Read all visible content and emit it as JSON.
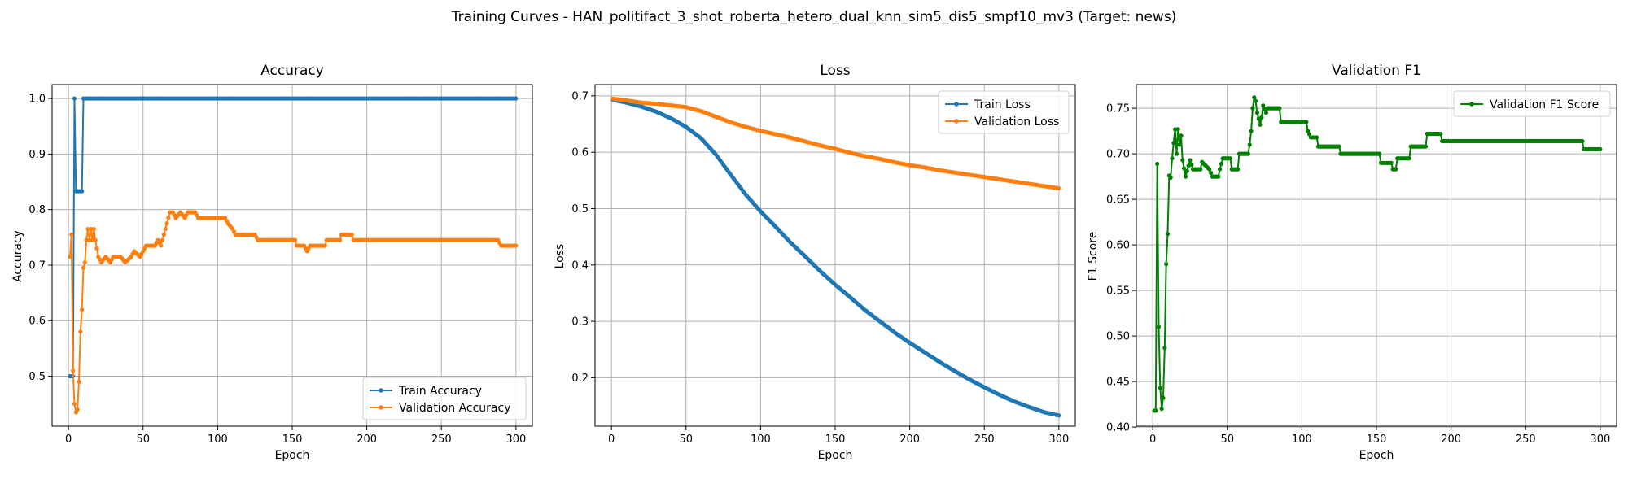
{
  "figure": {
    "suptitle": "Training Curves - HAN_politifact_3_shot_roberta_hetero_dual_knn_sim5_dis5_smpf10_mv3 (Target: news)"
  },
  "colors": {
    "train": "#1f77b4",
    "validation": "#ff7f0e",
    "f1": "#008000"
  },
  "chart_data": [
    {
      "type": "line",
      "title": "Accuracy",
      "xlabel": "Epoch",
      "ylabel": "Accuracy",
      "xlim": [
        -11,
        311
      ],
      "ylim": [
        0.41,
        1.025
      ],
      "xticks": [
        0,
        50,
        100,
        150,
        200,
        250,
        300
      ],
      "yticks": [
        0.5,
        0.6,
        0.7,
        0.8,
        0.9,
        1.0
      ],
      "ytick_labels": [
        "0.5",
        "0.6",
        "0.7",
        "0.8",
        "0.9",
        "1.0"
      ],
      "grid": true,
      "legend": "lower-right",
      "series": [
        {
          "name": "Train Accuracy",
          "color": "#1f77b4",
          "points": [
            [
              1,
              0.5
            ],
            [
              2,
              0.5
            ],
            [
              3,
              0.5
            ],
            [
              4,
              1.0
            ],
            [
              5,
              0.833
            ],
            [
              6,
              0.833
            ],
            [
              7,
              0.833
            ],
            [
              8,
              0.833
            ],
            [
              9,
              0.833
            ],
            [
              10,
              1.0
            ],
            [
              300,
              1.0
            ]
          ]
        },
        {
          "name": "Validation Accuracy",
          "color": "#ff7f0e",
          "points": [
            [
              1,
              0.715
            ],
            [
              2,
              0.755
            ],
            [
              3,
              0.51
            ],
            [
              4,
              0.45
            ],
            [
              5,
              0.435
            ],
            [
              6,
              0.44
            ],
            [
              7,
              0.49
            ],
            [
              8,
              0.58
            ],
            [
              9,
              0.62
            ],
            [
              10,
              0.695
            ],
            [
              11,
              0.705
            ],
            [
              12,
              0.745
            ],
            [
              13,
              0.765
            ],
            [
              14,
              0.745
            ],
            [
              15,
              0.765
            ],
            [
              16,
              0.745
            ],
            [
              17,
              0.765
            ],
            [
              18,
              0.745
            ],
            [
              20,
              0.715
            ],
            [
              22,
              0.705
            ],
            [
              25,
              0.715
            ],
            [
              28,
              0.705
            ],
            [
              30,
              0.715
            ],
            [
              35,
              0.715
            ],
            [
              38,
              0.705
            ],
            [
              42,
              0.715
            ],
            [
              44,
              0.725
            ],
            [
              48,
              0.715
            ],
            [
              50,
              0.725
            ],
            [
              52,
              0.735
            ],
            [
              58,
              0.735
            ],
            [
              60,
              0.745
            ],
            [
              62,
              0.735
            ],
            [
              63,
              0.745
            ],
            [
              65,
              0.765
            ],
            [
              67,
              0.785
            ],
            [
              68,
              0.795
            ],
            [
              70,
              0.795
            ],
            [
              72,
              0.785
            ],
            [
              75,
              0.795
            ],
            [
              78,
              0.785
            ],
            [
              80,
              0.795
            ],
            [
              85,
              0.795
            ],
            [
              87,
              0.785
            ],
            [
              105,
              0.785
            ],
            [
              107,
              0.775
            ],
            [
              110,
              0.765
            ],
            [
              112,
              0.755
            ],
            [
              125,
              0.755
            ],
            [
              127,
              0.745
            ],
            [
              152,
              0.745
            ],
            [
              153,
              0.735
            ],
            [
              158,
              0.735
            ],
            [
              160,
              0.725
            ],
            [
              162,
              0.735
            ],
            [
              172,
              0.735
            ],
            [
              173,
              0.745
            ],
            [
              182,
              0.745
            ],
            [
              183,
              0.755
            ],
            [
              190,
              0.755
            ],
            [
              191,
              0.745
            ],
            [
              288,
              0.745
            ],
            [
              290,
              0.735
            ],
            [
              300,
              0.735
            ]
          ]
        }
      ]
    },
    {
      "type": "line",
      "title": "Loss",
      "xlabel": "Epoch",
      "ylabel": "Loss",
      "xlim": [
        -11,
        311
      ],
      "ylim": [
        0.114,
        0.72
      ],
      "xticks": [
        0,
        50,
        100,
        150,
        200,
        250,
        300
      ],
      "yticks": [
        0.2,
        0.3,
        0.4,
        0.5,
        0.6,
        0.7
      ],
      "ytick_labels": [
        "0.2",
        "0.3",
        "0.4",
        "0.5",
        "0.6",
        "0.7"
      ],
      "grid": true,
      "legend": "upper-right",
      "series": [
        {
          "name": "Train Loss",
          "color": "#1f77b4",
          "points": [
            [
              1,
              0.693
            ],
            [
              10,
              0.688
            ],
            [
              20,
              0.681
            ],
            [
              30,
              0.672
            ],
            [
              40,
              0.66
            ],
            [
              50,
              0.645
            ],
            [
              60,
              0.625
            ],
            [
              70,
              0.596
            ],
            [
              80,
              0.56
            ],
            [
              90,
              0.525
            ],
            [
              100,
              0.495
            ],
            [
              110,
              0.468
            ],
            [
              120,
              0.44
            ],
            [
              130,
              0.415
            ],
            [
              140,
              0.389
            ],
            [
              150,
              0.365
            ],
            [
              160,
              0.343
            ],
            [
              170,
              0.32
            ],
            [
              180,
              0.3
            ],
            [
              190,
              0.28
            ],
            [
              200,
              0.262
            ],
            [
              210,
              0.245
            ],
            [
              220,
              0.228
            ],
            [
              230,
              0.212
            ],
            [
              240,
              0.197
            ],
            [
              250,
              0.183
            ],
            [
              260,
              0.17
            ],
            [
              270,
              0.158
            ],
            [
              280,
              0.148
            ],
            [
              290,
              0.139
            ],
            [
              300,
              0.133
            ]
          ]
        },
        {
          "name": "Validation Loss",
          "color": "#ff7f0e",
          "points": [
            [
              1,
              0.695
            ],
            [
              10,
              0.692
            ],
            [
              20,
              0.688
            ],
            [
              30,
              0.686
            ],
            [
              40,
              0.683
            ],
            [
              50,
              0.68
            ],
            [
              60,
              0.673
            ],
            [
              70,
              0.663
            ],
            [
              80,
              0.653
            ],
            [
              90,
              0.645
            ],
            [
              100,
              0.638
            ],
            [
              110,
              0.632
            ],
            [
              120,
              0.626
            ],
            [
              130,
              0.619
            ],
            [
              140,
              0.612
            ],
            [
              150,
              0.606
            ],
            [
              160,
              0.599
            ],
            [
              170,
              0.593
            ],
            [
              180,
              0.588
            ],
            [
              190,
              0.582
            ],
            [
              200,
              0.577
            ],
            [
              210,
              0.573
            ],
            [
              220,
              0.568
            ],
            [
              230,
              0.564
            ],
            [
              240,
              0.56
            ],
            [
              250,
              0.556
            ],
            [
              260,
              0.552
            ],
            [
              270,
              0.548
            ],
            [
              280,
              0.544
            ],
            [
              290,
              0.54
            ],
            [
              300,
              0.536
            ]
          ]
        }
      ]
    },
    {
      "type": "line",
      "title": "Validation F1",
      "xlabel": "Epoch",
      "ylabel": "F1 Score",
      "xlim": [
        -11,
        311
      ],
      "ylim": [
        0.401,
        0.776
      ],
      "xticks": [
        0,
        50,
        100,
        150,
        200,
        250,
        300
      ],
      "yticks": [
        0.4,
        0.45,
        0.5,
        0.55,
        0.6,
        0.65,
        0.7,
        0.75
      ],
      "ytick_labels": [
        "0.40",
        "0.45",
        "0.50",
        "0.55",
        "0.60",
        "0.65",
        "0.70",
        "0.75"
      ],
      "grid": true,
      "legend": "upper-right",
      "series": [
        {
          "name": "Validation F1 Score",
          "color": "#008000",
          "points": [
            [
              1,
              0.418
            ],
            [
              2,
              0.418
            ],
            [
              3,
              0.689
            ],
            [
              4,
              0.51
            ],
            [
              5,
              0.443
            ],
            [
              6,
              0.42
            ],
            [
              7,
              0.432
            ],
            [
              8,
              0.487
            ],
            [
              9,
              0.579
            ],
            [
              10,
              0.612
            ],
            [
              11,
              0.676
            ],
            [
              12,
              0.674
            ],
            [
              13,
              0.695
            ],
            [
              14,
              0.712
            ],
            [
              15,
              0.727
            ],
            [
              16,
              0.7
            ],
            [
              17,
              0.727
            ],
            [
              18,
              0.71
            ],
            [
              19,
              0.72
            ],
            [
              20,
              0.693
            ],
            [
              22,
              0.675
            ],
            [
              25,
              0.693
            ],
            [
              27,
              0.683
            ],
            [
              32,
              0.683
            ],
            [
              33,
              0.691
            ],
            [
              38,
              0.683
            ],
            [
              40,
              0.675
            ],
            [
              44,
              0.675
            ],
            [
              45,
              0.683
            ],
            [
              47,
              0.695
            ],
            [
              52,
              0.695
            ],
            [
              53,
              0.683
            ],
            [
              57,
              0.683
            ],
            [
              58,
              0.7
            ],
            [
              64,
              0.7
            ],
            [
              65,
              0.71
            ],
            [
              66,
              0.725
            ],
            [
              67,
              0.75
            ],
            [
              68,
              0.762
            ],
            [
              69,
              0.758
            ],
            [
              70,
              0.745
            ],
            [
              72,
              0.732
            ],
            [
              73,
              0.74
            ],
            [
              74,
              0.753
            ],
            [
              76,
              0.745
            ],
            [
              77,
              0.75
            ],
            [
              85,
              0.75
            ],
            [
              86,
              0.735
            ],
            [
              103,
              0.735
            ],
            [
              104,
              0.725
            ],
            [
              106,
              0.718
            ],
            [
              110,
              0.718
            ],
            [
              111,
              0.708
            ],
            [
              125,
              0.708
            ],
            [
              126,
              0.7
            ],
            [
              152,
              0.7
            ],
            [
              153,
              0.69
            ],
            [
              160,
              0.69
            ],
            [
              161,
              0.683
            ],
            [
              163,
              0.683
            ],
            [
              164,
              0.695
            ],
            [
              172,
              0.695
            ],
            [
              173,
              0.708
            ],
            [
              183,
              0.708
            ],
            [
              184,
              0.722
            ],
            [
              193,
              0.722
            ],
            [
              194,
              0.714
            ],
            [
              288,
              0.714
            ],
            [
              289,
              0.705
            ],
            [
              300,
              0.705
            ]
          ]
        }
      ]
    }
  ]
}
